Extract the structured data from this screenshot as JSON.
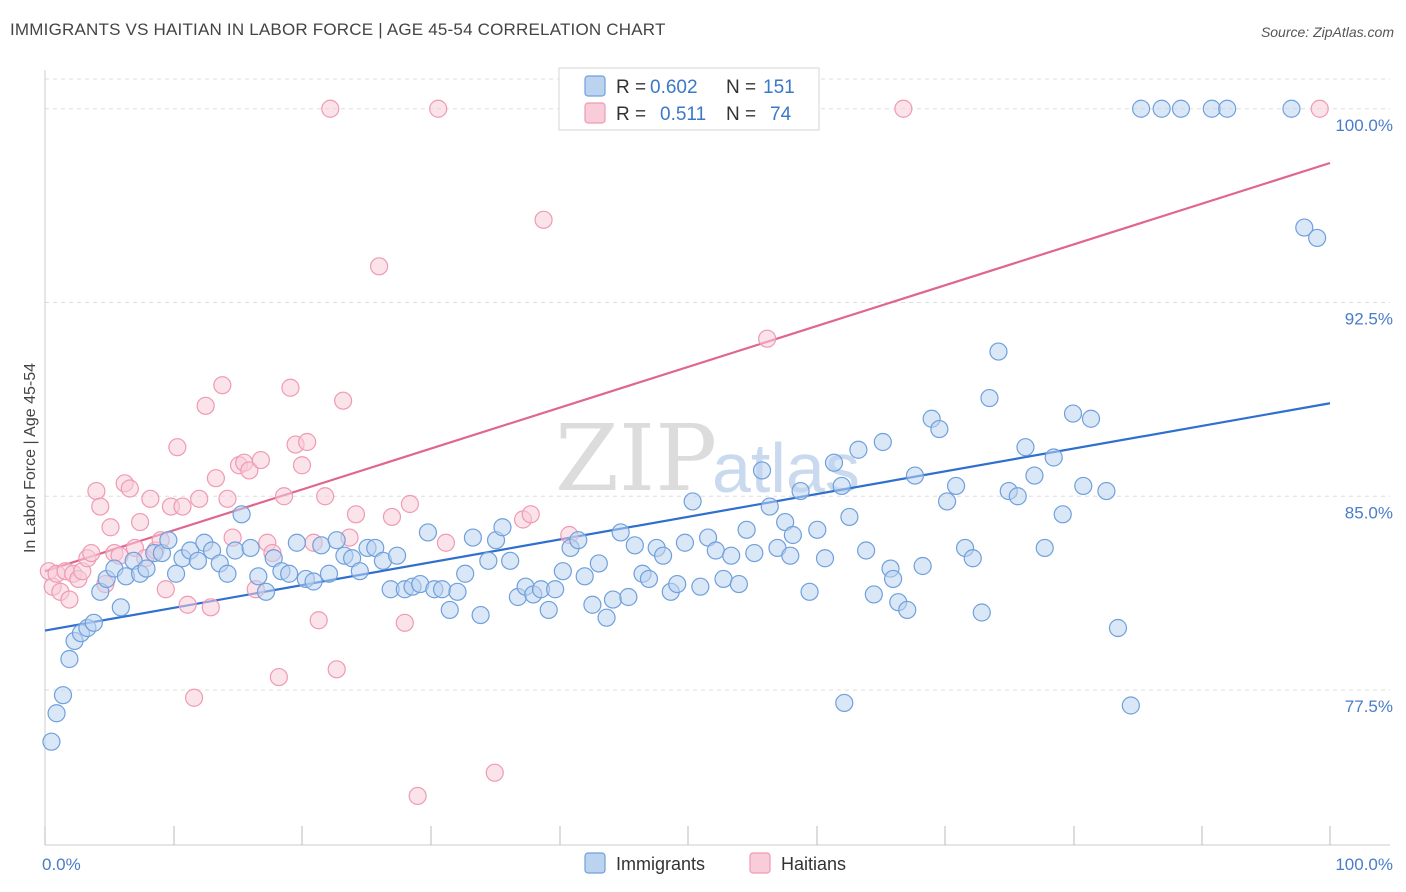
{
  "title": "IMMIGRANTS VS HAITIAN IN LABOR FORCE | AGE 45-54 CORRELATION CHART",
  "source": "Source: ZipAtlas.com",
  "watermark": {
    "zip": "ZIP",
    "atlas": "atlas"
  },
  "chart_data": {
    "type": "scatter",
    "xlabel": "",
    "ylabel": "In Labor Force | Age 45-54",
    "xlim": [
      0,
      100
    ],
    "ylim": [
      71.5,
      101.5
    ],
    "x_tick_labels": [
      {
        "value": 0,
        "label": "0.0%"
      },
      {
        "value": 100,
        "label": "100.0%"
      }
    ],
    "y_tick_labels": [
      {
        "value": 77.5,
        "label": "77.5%"
      },
      {
        "value": 85.0,
        "label": "85.0%"
      },
      {
        "value": 92.5,
        "label": "92.5%"
      },
      {
        "value": 100.0,
        "label": "100.0%"
      }
    ],
    "grid": true,
    "legend_position": "top-center",
    "series": [
      {
        "name": "Immigrants",
        "color": "#6fa0dc",
        "fill": "#bcd3f0",
        "line_color": "#2f6fcf",
        "R": "0.602",
        "N": "151",
        "trend": [
          [
            0,
            79.8
          ],
          [
            100,
            88.6
          ]
        ],
        "points": [
          [
            0.5,
            75.5
          ],
          [
            0.9,
            76.6
          ],
          [
            1.4,
            77.3
          ],
          [
            1.9,
            78.7
          ],
          [
            2.3,
            79.4
          ],
          [
            2.8,
            79.7
          ],
          [
            3.3,
            79.9
          ],
          [
            3.8,
            80.1
          ],
          [
            4.3,
            81.3
          ],
          [
            4.8,
            81.8
          ],
          [
            5.4,
            82.2
          ],
          [
            5.9,
            80.7
          ],
          [
            6.3,
            81.9
          ],
          [
            6.9,
            82.5
          ],
          [
            7.4,
            82.0
          ],
          [
            7.9,
            82.2
          ],
          [
            8.5,
            82.8
          ],
          [
            9.1,
            82.8
          ],
          [
            9.6,
            83.3
          ],
          [
            10.2,
            82.0
          ],
          [
            10.7,
            82.6
          ],
          [
            11.3,
            82.9
          ],
          [
            11.9,
            82.5
          ],
          [
            12.4,
            83.2
          ],
          [
            13.0,
            82.9
          ],
          [
            13.6,
            82.4
          ],
          [
            14.2,
            82.0
          ],
          [
            14.8,
            82.9
          ],
          [
            15.3,
            84.3
          ],
          [
            16.0,
            83.0
          ],
          [
            16.6,
            81.9
          ],
          [
            17.2,
            81.3
          ],
          [
            17.8,
            82.6
          ],
          [
            18.4,
            82.1
          ],
          [
            19.0,
            82.0
          ],
          [
            19.6,
            83.2
          ],
          [
            20.3,
            81.8
          ],
          [
            20.9,
            81.7
          ],
          [
            21.5,
            83.1
          ],
          [
            22.1,
            82.0
          ],
          [
            22.7,
            83.3
          ],
          [
            23.3,
            82.7
          ],
          [
            23.9,
            82.6
          ],
          [
            24.5,
            82.1
          ],
          [
            25.1,
            83.0
          ],
          [
            25.7,
            83.0
          ],
          [
            26.3,
            82.5
          ],
          [
            26.9,
            81.4
          ],
          [
            27.4,
            82.7
          ],
          [
            28.0,
            81.4
          ],
          [
            28.6,
            81.5
          ],
          [
            29.2,
            81.6
          ],
          [
            29.8,
            83.6
          ],
          [
            30.3,
            81.4
          ],
          [
            30.9,
            81.4
          ],
          [
            31.5,
            80.6
          ],
          [
            32.1,
            81.3
          ],
          [
            32.7,
            82.0
          ],
          [
            33.3,
            83.4
          ],
          [
            33.9,
            80.4
          ],
          [
            34.5,
            82.5
          ],
          [
            35.1,
            83.3
          ],
          [
            35.6,
            83.8
          ],
          [
            36.2,
            82.5
          ],
          [
            36.8,
            81.1
          ],
          [
            37.4,
            81.5
          ],
          [
            38.0,
            81.2
          ],
          [
            38.6,
            81.4
          ],
          [
            39.2,
            80.6
          ],
          [
            39.7,
            81.4
          ],
          [
            40.3,
            82.1
          ],
          [
            40.9,
            83.0
          ],
          [
            41.5,
            83.3
          ],
          [
            42.0,
            81.9
          ],
          [
            42.6,
            80.8
          ],
          [
            43.1,
            82.4
          ],
          [
            43.7,
            80.3
          ],
          [
            44.2,
            81.0
          ],
          [
            44.8,
            83.6
          ],
          [
            45.4,
            81.1
          ],
          [
            45.9,
            83.1
          ],
          [
            46.5,
            82.0
          ],
          [
            47.0,
            81.8
          ],
          [
            47.6,
            83.0
          ],
          [
            48.1,
            82.7
          ],
          [
            48.7,
            81.3
          ],
          [
            49.2,
            81.6
          ],
          [
            49.8,
            83.2
          ],
          [
            50.4,
            84.8
          ],
          [
            51.0,
            81.5
          ],
          [
            51.6,
            83.4
          ],
          [
            52.2,
            82.9
          ],
          [
            52.8,
            81.8
          ],
          [
            53.4,
            82.7
          ],
          [
            54.0,
            81.6
          ],
          [
            54.6,
            83.7
          ],
          [
            55.2,
            82.8
          ],
          [
            55.8,
            86.0
          ],
          [
            56.4,
            84.6
          ],
          [
            57.0,
            83.0
          ],
          [
            57.6,
            84.0
          ],
          [
            58.2,
            83.5
          ],
          [
            58.8,
            85.2
          ],
          [
            59.5,
            81.3
          ],
          [
            60.1,
            83.7
          ],
          [
            60.7,
            82.6
          ],
          [
            61.4,
            86.3
          ],
          [
            62.0,
            85.4
          ],
          [
            62.6,
            84.2
          ],
          [
            63.3,
            86.8
          ],
          [
            63.9,
            82.9
          ],
          [
            64.5,
            81.2
          ],
          [
            65.2,
            87.1
          ],
          [
            65.8,
            82.2
          ],
          [
            66.4,
            80.9
          ],
          [
            67.1,
            80.6
          ],
          [
            67.7,
            85.8
          ],
          [
            68.3,
            82.3
          ],
          [
            69.0,
            88.0
          ],
          [
            69.6,
            87.6
          ],
          [
            70.2,
            84.8
          ],
          [
            70.9,
            85.4
          ],
          [
            71.6,
            83.0
          ],
          [
            72.2,
            82.6
          ],
          [
            72.9,
            80.5
          ],
          [
            73.5,
            88.8
          ],
          [
            74.2,
            90.6
          ],
          [
            75.0,
            85.2
          ],
          [
            75.7,
            85.0
          ],
          [
            76.3,
            86.9
          ],
          [
            77.0,
            85.8
          ],
          [
            77.8,
            83.0
          ],
          [
            78.5,
            86.5
          ],
          [
            79.2,
            84.3
          ],
          [
            80.0,
            88.2
          ],
          [
            80.8,
            85.4
          ],
          [
            81.4,
            88.0
          ],
          [
            82.6,
            85.2
          ],
          [
            83.5,
            79.9
          ],
          [
            84.5,
            76.9
          ],
          [
            85.3,
            100.0
          ],
          [
            86.9,
            100.0
          ],
          [
            88.4,
            100.0
          ],
          [
            90.8,
            100.0
          ],
          [
            92.0,
            100.0
          ],
          [
            97.0,
            100.0
          ],
          [
            98.0,
            95.4
          ],
          [
            99.0,
            95.0
          ],
          [
            62.2,
            77.0
          ],
          [
            58.0,
            82.7
          ],
          [
            66.0,
            81.8
          ]
        ]
      },
      {
        "name": "Haitians",
        "color": "#ef9ab4",
        "fill": "#f8ccd9",
        "line_color": "#e06690",
        "R": "0.511",
        "N": "74",
        "trend": [
          [
            0,
            82.1
          ],
          [
            100,
            97.9
          ]
        ],
        "points": [
          [
            0.3,
            82.1
          ],
          [
            0.6,
            81.5
          ],
          [
            0.9,
            82.0
          ],
          [
            1.2,
            81.3
          ],
          [
            1.6,
            82.1
          ],
          [
            1.9,
            81.0
          ],
          [
            2.2,
            82.0
          ],
          [
            2.6,
            81.8
          ],
          [
            2.9,
            82.1
          ],
          [
            3.3,
            82.6
          ],
          [
            3.6,
            82.8
          ],
          [
            4.0,
            85.2
          ],
          [
            4.3,
            84.6
          ],
          [
            4.7,
            81.6
          ],
          [
            5.1,
            83.8
          ],
          [
            5.4,
            82.8
          ],
          [
            5.8,
            82.7
          ],
          [
            6.2,
            85.5
          ],
          [
            6.6,
            85.3
          ],
          [
            7.0,
            83.0
          ],
          [
            7.4,
            84.0
          ],
          [
            7.8,
            82.6
          ],
          [
            8.2,
            84.9
          ],
          [
            8.6,
            82.9
          ],
          [
            9.0,
            83.3
          ],
          [
            9.4,
            81.4
          ],
          [
            9.8,
            84.6
          ],
          [
            10.3,
            86.9
          ],
          [
            10.7,
            84.6
          ],
          [
            11.1,
            80.8
          ],
          [
            11.6,
            77.2
          ],
          [
            12.0,
            84.9
          ],
          [
            12.5,
            88.5
          ],
          [
            12.9,
            80.7
          ],
          [
            13.3,
            85.7
          ],
          [
            13.8,
            89.3
          ],
          [
            14.2,
            84.9
          ],
          [
            14.6,
            83.4
          ],
          [
            15.1,
            86.2
          ],
          [
            15.5,
            86.3
          ],
          [
            15.9,
            86.0
          ],
          [
            16.4,
            81.4
          ],
          [
            16.8,
            86.4
          ],
          [
            17.3,
            83.2
          ],
          [
            17.7,
            82.8
          ],
          [
            18.2,
            78.0
          ],
          [
            18.6,
            85.0
          ],
          [
            19.1,
            89.2
          ],
          [
            19.5,
            87.0
          ],
          [
            20.0,
            86.2
          ],
          [
            20.4,
            87.1
          ],
          [
            20.9,
            83.2
          ],
          [
            21.3,
            80.2
          ],
          [
            21.8,
            85.0
          ],
          [
            22.2,
            100.0
          ],
          [
            22.7,
            78.3
          ],
          [
            23.2,
            88.7
          ],
          [
            23.7,
            83.4
          ],
          [
            24.2,
            84.3
          ],
          [
            26.0,
            93.9
          ],
          [
            27.0,
            84.2
          ],
          [
            28.0,
            80.1
          ],
          [
            28.4,
            84.7
          ],
          [
            29.0,
            73.4
          ],
          [
            30.6,
            100.0
          ],
          [
            31.2,
            83.2
          ],
          [
            35.0,
            74.3
          ],
          [
            37.2,
            84.1
          ],
          [
            37.8,
            84.3
          ],
          [
            38.8,
            95.7
          ],
          [
            40.8,
            83.5
          ],
          [
            56.2,
            91.1
          ],
          [
            66.8,
            100.0
          ],
          [
            99.2,
            100.0
          ]
        ]
      }
    ]
  },
  "legend": {
    "r_label": "R =",
    "n_label": "N ="
  }
}
